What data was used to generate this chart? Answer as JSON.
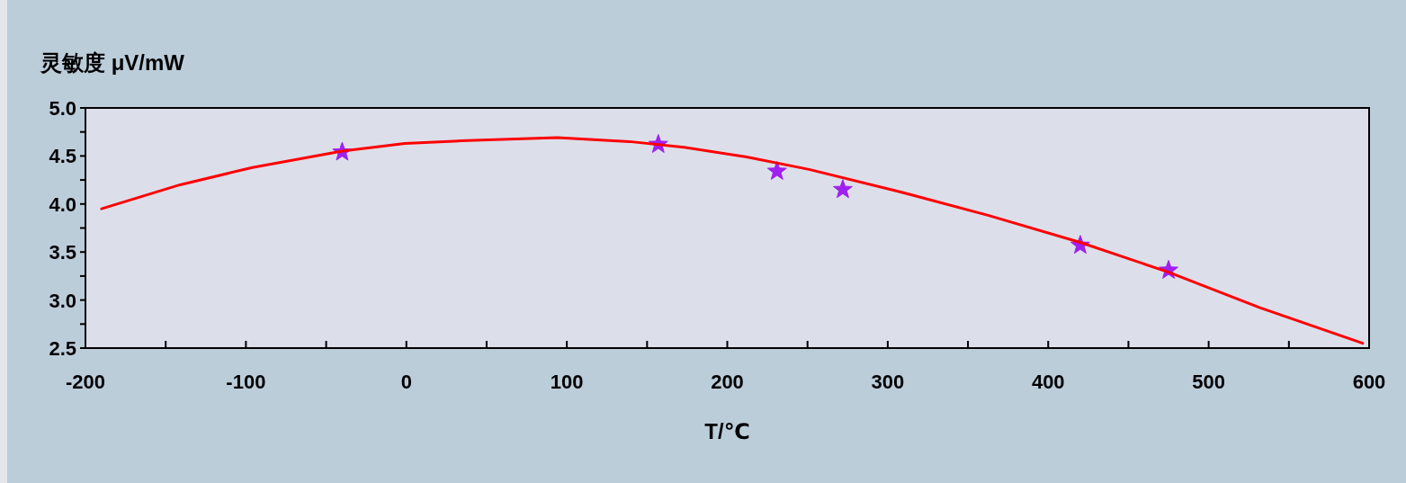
{
  "chart_data": {
    "type": "scatter",
    "ylabel": "灵敏度 μV/mW",
    "xlabel": "T/℃",
    "xlim": [
      -200,
      600
    ],
    "ylim": [
      2.5,
      5.0
    ],
    "xticks": [
      -200,
      {
        "value": -150,
        "label": null
      },
      -100,
      {
        "value": -50,
        "label": null
      },
      0,
      {
        "value": 50,
        "label": null
      },
      100,
      {
        "value": 150,
        "label": null
      },
      200,
      {
        "value": 250,
        "label": null
      },
      300,
      {
        "value": 350,
        "label": null
      },
      400,
      {
        "value": 450,
        "label": null
      },
      500,
      {
        "value": 550,
        "label": null
      },
      600
    ],
    "yticks": [
      {
        "value": 2.5,
        "label": "2.5"
      },
      {
        "value": 2.75,
        "label": null
      },
      {
        "value": 3.0,
        "label": "3.0"
      },
      {
        "value": 3.25,
        "label": null
      },
      {
        "value": 3.5,
        "label": "3.5"
      },
      {
        "value": 3.75,
        "label": null
      },
      {
        "value": 4.0,
        "label": "4.0"
      },
      {
        "value": 4.25,
        "label": null
      },
      {
        "value": 4.5,
        "label": "4.5"
      },
      {
        "value": 4.75,
        "label": null
      },
      {
        "value": 5.0,
        "label": "5.0"
      }
    ],
    "grid": false,
    "series": [
      {
        "type": "line",
        "color": "#ff0000",
        "marker": "none",
        "line_style": "solid",
        "x": [
          -190,
          -141,
          -96,
          -40,
          -1,
          38,
          94,
          139,
          173,
          212,
          251,
          307,
          363,
          420,
          475,
          532,
          596
        ],
        "values": [
          3.95,
          4.2,
          4.38,
          4.55,
          4.63,
          4.66,
          4.69,
          4.65,
          4.59,
          4.49,
          4.36,
          4.13,
          3.88,
          3.6,
          3.29,
          2.92,
          2.55
        ]
      },
      {
        "type": "scatter",
        "color": "#a020f0",
        "marker": "star",
        "x": [
          -40,
          157,
          231,
          272,
          420,
          475
        ],
        "values": [
          4.54,
          4.62,
          4.34,
          4.15,
          3.57,
          3.31
        ]
      }
    ]
  }
}
